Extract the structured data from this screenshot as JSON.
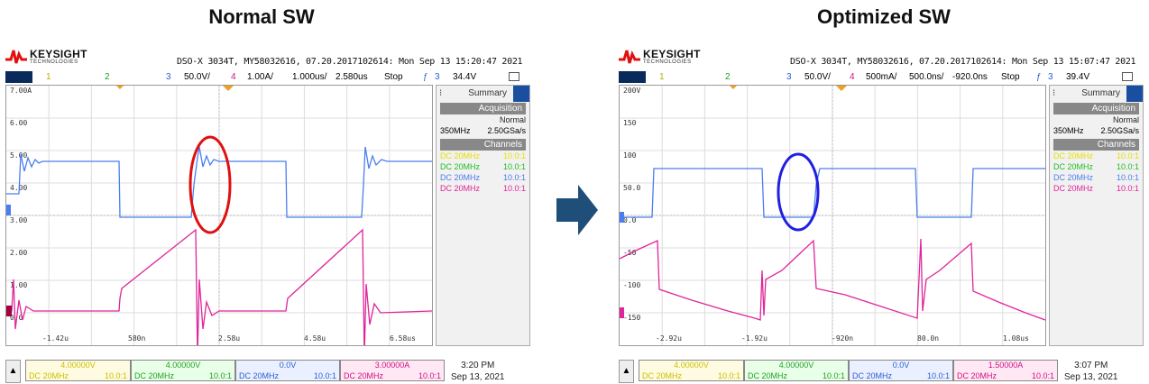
{
  "left_panel": {
    "heading": "Normal SW",
    "brand": "KEYSIGHT",
    "brand_sub": "TECHNOLOGIES",
    "info": "DSO-X 3034T, MY58032616, 07.20.2017102614: Mon Sep 13 15:20:47 2021",
    "chanbar": {
      "ch1_num": "1",
      "ch2_num": "2",
      "ch3_num": "3",
      "ch3_scale": "50.0V/",
      "ch4_num": "4",
      "ch4_scale": "1.00A/",
      "timebase": "1.000us/",
      "delay": "2.580us",
      "run_state": "Stop",
      "trig_icon": "ƒ",
      "trig_ch": "3",
      "trig_level": "34.4V"
    },
    "y_ticks": [
      "7.00A",
      "6.00",
      "5.00",
      "4.00",
      "3.00",
      "2.00",
      "1.00",
      "0.0"
    ],
    "x_ticks": [
      "-1.42u",
      "580n",
      "2.58u",
      "4.58u",
      "6.58us"
    ],
    "sidebar": {
      "title": "Summary",
      "acq_title": "Acquisition",
      "acq_mode": "Normal",
      "acq_rate_bw": "350MHz",
      "acq_rate": "2.50GSa/s",
      "chan_title": "Channels",
      "channels": [
        {
          "coupling": "DC 20MHz",
          "probe": "10.0:1",
          "color": "#e8e000"
        },
        {
          "coupling": "DC 20MHz",
          "probe": "10.0:1",
          "color": "#22c022"
        },
        {
          "coupling": "DC 20MHz",
          "probe": "10.0:1",
          "color": "#4a7ef0"
        },
        {
          "coupling": "DC 20MHz",
          "probe": "10.0:1",
          "color": "#e0249a"
        }
      ]
    },
    "bottom": {
      "channels": [
        {
          "value": "4.00000V",
          "coupling": "DC 20MHz",
          "probe": "10.0:1"
        },
        {
          "value": "4.00000V",
          "coupling": "DC 20MHz",
          "probe": "10.0:1"
        },
        {
          "value": "0.0V",
          "coupling": "DC 20MHz",
          "probe": "10.0:1"
        },
        {
          "value": "3.00000A",
          "coupling": "DC 20MHz",
          "probe": "10.0:1"
        }
      ],
      "time": "3:20 PM",
      "date": "Sep 13, 2021"
    }
  },
  "right_panel": {
    "heading": "Optimized SW",
    "brand": "KEYSIGHT",
    "brand_sub": "TECHNOLOGIES",
    "info": "DSO-X 3034T, MY58032616, 07.20.2017102614: Mon Sep 13 15:07:47 2021",
    "chanbar": {
      "ch1_num": "1",
      "ch2_num": "2",
      "ch3_num": "3",
      "ch3_scale": "50.0V/",
      "ch4_num": "4",
      "ch4_scale": "500mA/",
      "timebase": "500.0ns/",
      "delay": "-920.0ns",
      "run_state": "Stop",
      "trig_icon": "ƒ",
      "trig_ch": "3",
      "trig_level": "39.4V"
    },
    "y_ticks": [
      "200V",
      "150",
      "100",
      "50.0",
      "0.0",
      "-50",
      "-100",
      "-150"
    ],
    "x_ticks": [
      "-2.92u",
      "-1.92u",
      "-920n",
      "80.0n",
      "1.08us"
    ],
    "sidebar": {
      "title": "Summary",
      "acq_title": "Acquisition",
      "acq_mode": "Normal",
      "acq_rate_bw": "350MHz",
      "acq_rate": "2.50GSa/s",
      "chan_title": "Channels",
      "channels": [
        {
          "coupling": "DC 20MHz",
          "probe": "10.0:1",
          "color": "#e8e000"
        },
        {
          "coupling": "DC 20MHz",
          "probe": "10.0:1",
          "color": "#22c022"
        },
        {
          "coupling": "DC 20MHz",
          "probe": "10.0:1",
          "color": "#4a7ef0"
        },
        {
          "coupling": "DC 20MHz",
          "probe": "10.0:1",
          "color": "#e0249a"
        }
      ]
    },
    "bottom": {
      "channels": [
        {
          "value": "4.00000V",
          "coupling": "DC 20MHz",
          "probe": "10.0:1"
        },
        {
          "value": "4.00000V",
          "coupling": "DC 20MHz",
          "probe": "10.0:1"
        },
        {
          "value": "0.0V",
          "coupling": "DC 20MHz",
          "probe": "10.0:1"
        },
        {
          "value": "1.50000A",
          "coupling": "DC 20MHz",
          "probe": "10.0:1"
        }
      ],
      "time": "3:07 PM",
      "date": "Sep 13, 2021"
    }
  },
  "colors": {
    "ch1": "#e8e000",
    "ch2": "#22c022",
    "ch3": "#4a7ef0",
    "ch4": "#e0249a",
    "highlight_left": "#e01010",
    "highlight_right": "#2020e0",
    "arrow": "#1f4e79"
  },
  "icons": {
    "brand_logo": "keysight-logo-icon",
    "scroll": "up-arrow-icon",
    "transition_arrow": "right-arrow-icon",
    "highlight": "ellipse-highlight-icon"
  }
}
